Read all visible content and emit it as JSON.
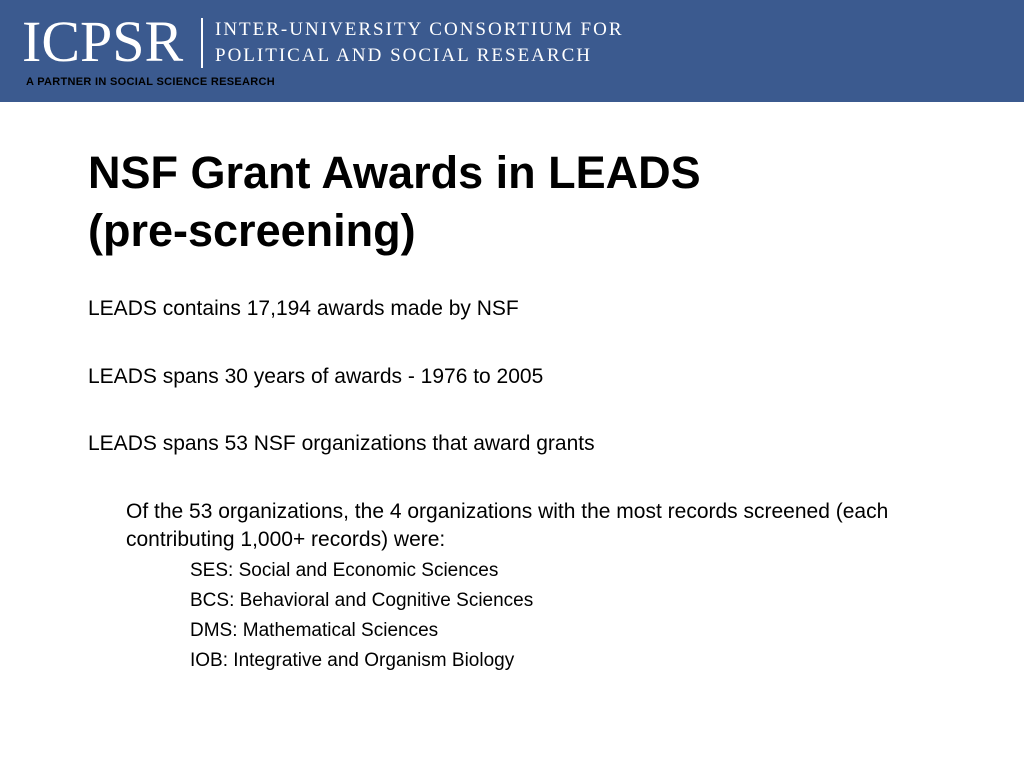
{
  "header": {
    "logo_text": "ICPSR",
    "consortium_line1": "INTER-UNIVERSITY CONSORTIUM FOR",
    "consortium_line2": "POLITICAL AND SOCIAL RESEARCH",
    "tagline": "A PARTNER IN SOCIAL SCIENCE RESEARCH",
    "banner_color": "#3b5a8f"
  },
  "slide": {
    "title_line1": "NSF Grant Awards in LEADS",
    "title_line2": "(pre-screening)",
    "bullets": [
      "LEADS contains 17,194 awards made by NSF",
      "LEADS spans 30 years of awards - 1976 to 2005",
      "LEADS spans 53 NSF organizations that award grants"
    ],
    "sub_bullet": "Of the 53 organizations, the 4 organizations with the most records screened (each contributing 1,000+ records) were:",
    "organizations": [
      "SES: Social and Economic Sciences",
      "BCS: Behavioral and Cognitive Sciences",
      "DMS: Mathematical Sciences",
      "IOB: Integrative and Organism Biology"
    ]
  }
}
